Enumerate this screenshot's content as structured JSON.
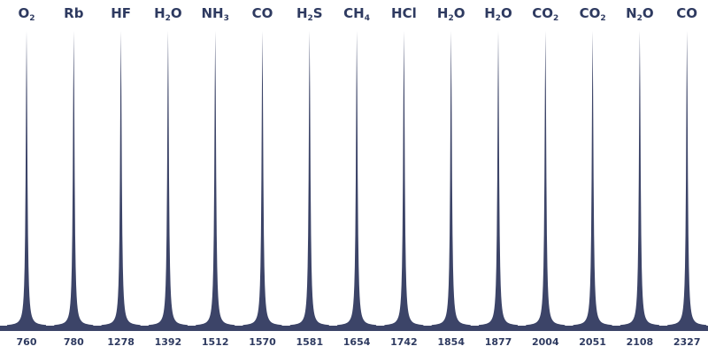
{
  "chart_data": {
    "type": "line",
    "peaks": [
      {
        "label": "O",
        "sub": "2",
        "post": "",
        "x": "760"
      },
      {
        "label": "Rb",
        "sub": "",
        "post": "",
        "x": "780"
      },
      {
        "label": "HF",
        "sub": "",
        "post": "",
        "x": "1278"
      },
      {
        "label": "H",
        "sub": "2",
        "post": "O",
        "x": "1392"
      },
      {
        "label": "NH",
        "sub": "3",
        "post": "",
        "x": "1512"
      },
      {
        "label": "CO",
        "sub": "",
        "post": "",
        "x": "1570"
      },
      {
        "label": "H",
        "sub": "2",
        "post": "S",
        "x": "1581"
      },
      {
        "label": "CH",
        "sub": "4",
        "post": "",
        "x": "1654"
      },
      {
        "label": "HCl",
        "sub": "",
        "post": "",
        "x": "1742"
      },
      {
        "label": "H",
        "sub": "2",
        "post": "O",
        "x": "1854"
      },
      {
        "label": "H",
        "sub": "2",
        "post": "O",
        "x": "1877"
      },
      {
        "label": "CO",
        "sub": "2",
        "post": "",
        "x": "2004"
      },
      {
        "label": "CO",
        "sub": "2",
        "post": "",
        "x": "2051"
      },
      {
        "label": "N",
        "sub": "2",
        "post": "O",
        "x": "2108"
      },
      {
        "label": "CO",
        "sub": "",
        "post": "",
        "x": "2327"
      }
    ],
    "grid": false,
    "legend": "none",
    "colors": {
      "peak": "#3c4468",
      "text": "#2e3a60"
    }
  }
}
